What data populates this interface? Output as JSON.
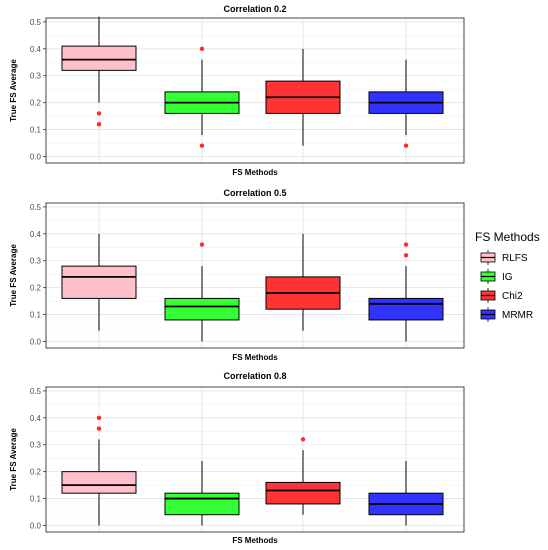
{
  "legend": {
    "title": "FS Methods",
    "entries": [
      {
        "label": "RLFS",
        "color": "#FFC0CB"
      },
      {
        "label": "IG",
        "color": "#33FF33"
      },
      {
        "label": "Chi2",
        "color": "#FF3333"
      },
      {
        "label": "MRMR",
        "color": "#3333FF"
      }
    ]
  },
  "chart_data": [
    {
      "type": "box",
      "title": "Correlation 0.2",
      "xlabel": "FS Methods",
      "ylabel": "True FS Average",
      "ylim": [
        0,
        0.5
      ],
      "yticks": [
        0.0,
        0.1,
        0.2,
        0.3,
        0.4,
        0.5
      ],
      "tick_labels": [
        "0.0",
        "0.1",
        "0.2",
        "0.3",
        "0.4",
        "0.5"
      ],
      "series": [
        {
          "name": "RLFS",
          "min": 0.2,
          "q1": 0.32,
          "median": 0.36,
          "q3": 0.41,
          "max": 0.52,
          "outliers": [
            0.16,
            0.12
          ]
        },
        {
          "name": "IG",
          "min": 0.08,
          "q1": 0.16,
          "median": 0.2,
          "q3": 0.24,
          "max": 0.36,
          "outliers": [
            0.4,
            0.04
          ]
        },
        {
          "name": "Chi2",
          "min": 0.04,
          "q1": 0.16,
          "median": 0.22,
          "q3": 0.28,
          "max": 0.4,
          "outliers": []
        },
        {
          "name": "MRMR",
          "min": 0.08,
          "q1": 0.16,
          "median": 0.2,
          "q3": 0.24,
          "max": 0.36,
          "outliers": [
            0.04
          ]
        }
      ]
    },
    {
      "type": "box",
      "title": "Correlation 0.5",
      "xlabel": "FS Methods",
      "ylabel": "True FS Average",
      "ylim": [
        0,
        0.5
      ],
      "yticks": [
        0.0,
        0.1,
        0.2,
        0.3,
        0.4,
        0.5
      ],
      "tick_labels": [
        "0.0",
        "0.1",
        "0.2",
        "0.3",
        "0.4",
        "0.5"
      ],
      "series": [
        {
          "name": "RLFS",
          "min": 0.04,
          "q1": 0.16,
          "median": 0.24,
          "q3": 0.28,
          "max": 0.4,
          "outliers": []
        },
        {
          "name": "IG",
          "min": 0.0,
          "q1": 0.08,
          "median": 0.13,
          "q3": 0.16,
          "max": 0.28,
          "outliers": [
            0.36
          ]
        },
        {
          "name": "Chi2",
          "min": 0.04,
          "q1": 0.12,
          "median": 0.18,
          "q3": 0.24,
          "max": 0.4,
          "outliers": []
        },
        {
          "name": "MRMR",
          "min": 0.0,
          "q1": 0.08,
          "median": 0.14,
          "q3": 0.16,
          "max": 0.28,
          "outliers": [
            0.36,
            0.32
          ]
        }
      ]
    },
    {
      "type": "box",
      "title": "Correlation 0.8",
      "xlabel": "FS Methods",
      "ylabel": "True FS Average",
      "ylim": [
        0,
        0.5
      ],
      "yticks": [
        0.0,
        0.1,
        0.2,
        0.3,
        0.4,
        0.5
      ],
      "tick_labels": [
        "0.0",
        "0.1",
        "0.2",
        "0.3",
        "0.4",
        "0.5"
      ],
      "series": [
        {
          "name": "RLFS",
          "min": 0.0,
          "q1": 0.12,
          "median": 0.15,
          "q3": 0.2,
          "max": 0.32,
          "outliers": [
            0.4,
            0.36
          ]
        },
        {
          "name": "IG",
          "min": 0.0,
          "q1": 0.04,
          "median": 0.1,
          "q3": 0.12,
          "max": 0.24,
          "outliers": []
        },
        {
          "name": "Chi2",
          "min": 0.04,
          "q1": 0.08,
          "median": 0.13,
          "q3": 0.16,
          "max": 0.28,
          "outliers": [
            0.32
          ]
        },
        {
          "name": "MRMR",
          "min": 0.0,
          "q1": 0.04,
          "median": 0.08,
          "q3": 0.12,
          "max": 0.24,
          "outliers": []
        }
      ]
    }
  ]
}
